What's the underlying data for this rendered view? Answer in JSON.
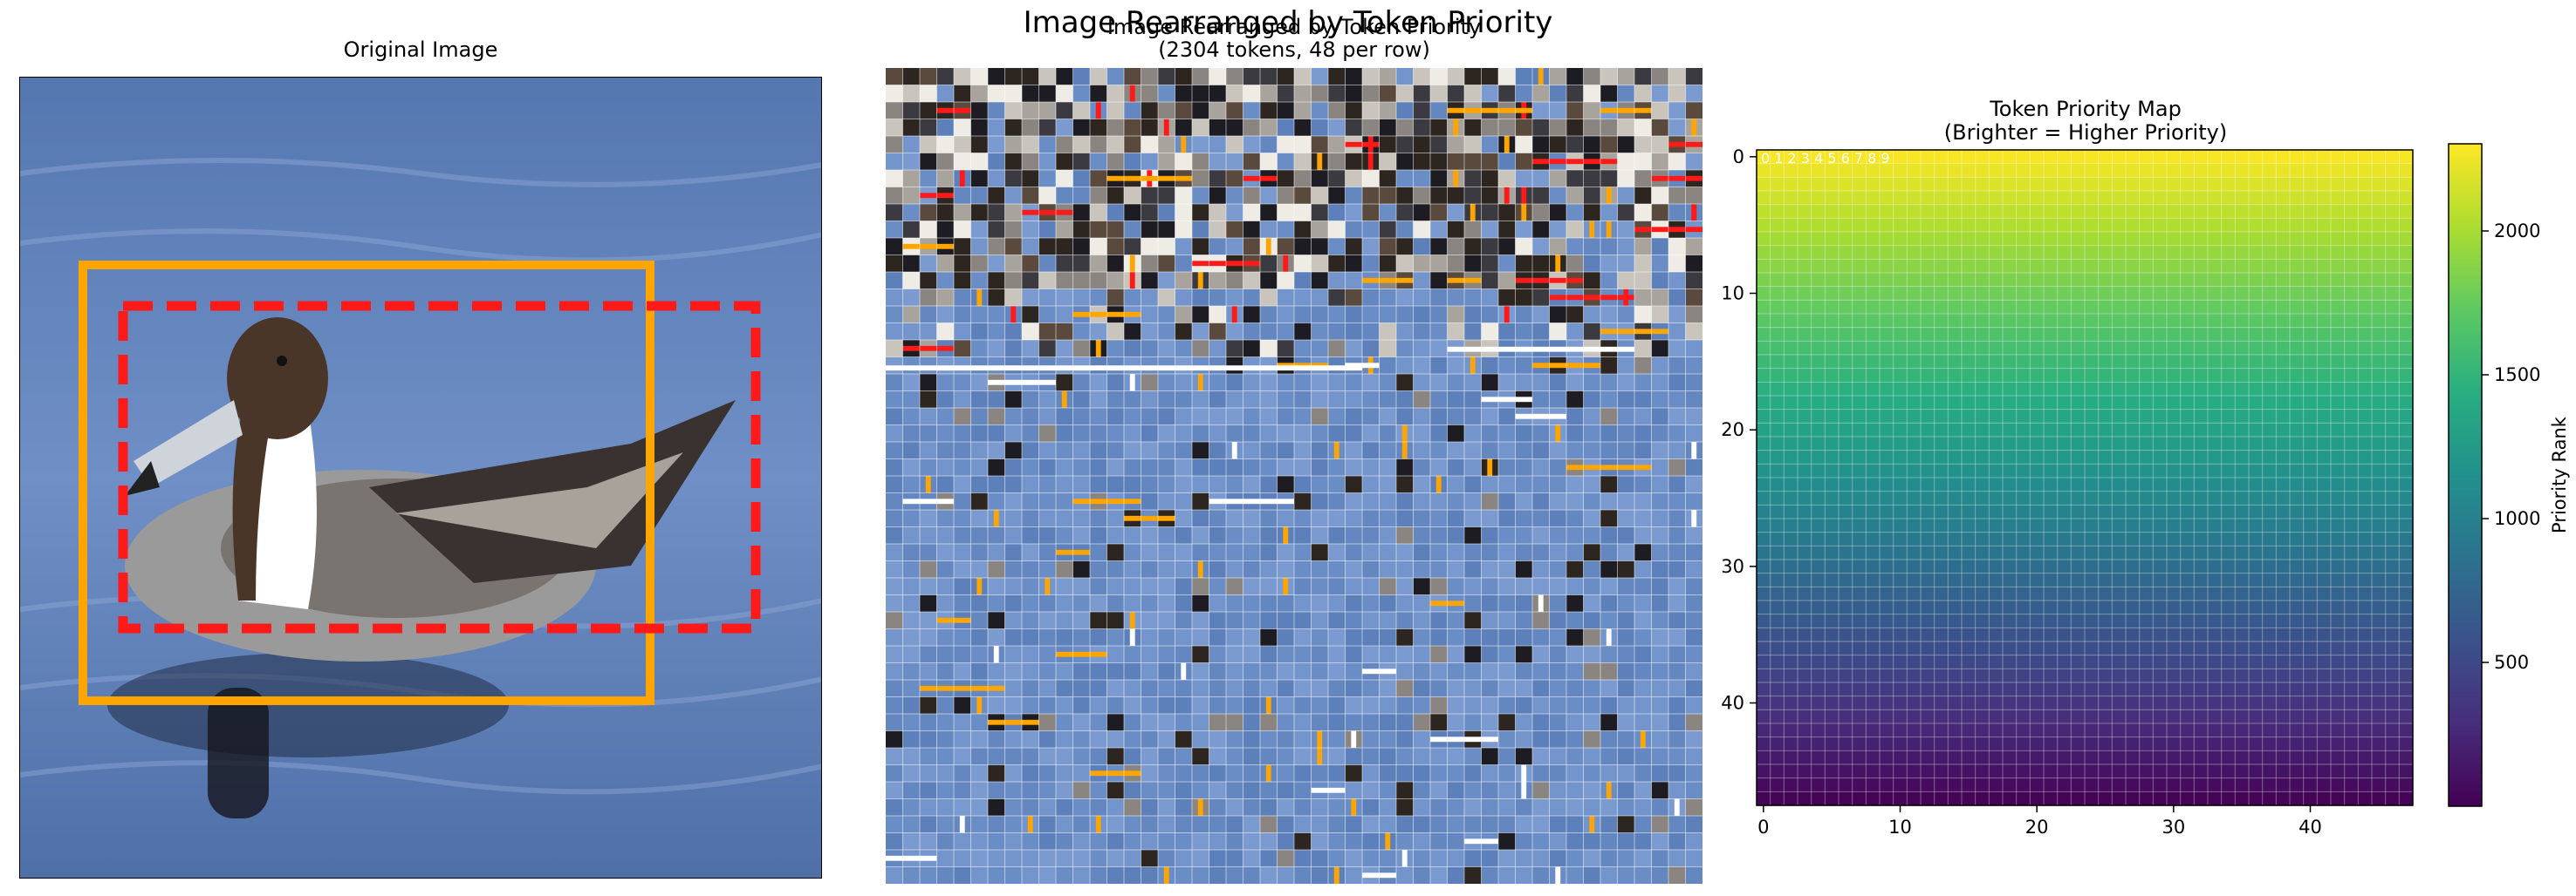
{
  "figure": {
    "title": "Image Rearranged by Token Priority"
  },
  "panels": {
    "original": {
      "title": "Original Image"
    },
    "rearranged": {
      "title": "Image Rearranged by Token Priority",
      "subtitle": "(2304 tokens, 48 per row)"
    },
    "priority_map": {
      "title": "Token Priority Map",
      "subtitle": "(Brighter = Higher Priority)",
      "row_index_overlay": "0 1 2 3 4 5 6 7 8 9",
      "colorbar_label": "Priority Rank"
    }
  },
  "chart_data": [
    {
      "type": "image",
      "title": "Original Image",
      "annotations": [
        {
          "kind": "bounding-box",
          "style": "solid",
          "color": "#ffa500"
        },
        {
          "kind": "bounding-box",
          "style": "dashed",
          "color": "#ff1a1a"
        }
      ]
    },
    {
      "type": "image",
      "title": "Image Rearranged by Token Priority",
      "subtitle": "(2304 tokens, 48 per row)",
      "tokens": 2304,
      "tokens_per_row": 48,
      "highlight_colors": [
        "#ffa500",
        "#ff1a1a",
        "#ffffff"
      ]
    },
    {
      "type": "heatmap",
      "title": "Token Priority Map",
      "subtitle": "(Brighter = Higher Priority)",
      "grid": [
        48,
        48
      ],
      "colormap": "viridis",
      "value_range": [
        0,
        2303
      ],
      "gradient": "rank increases from bottom row (low) to top row (high)",
      "x_ticks": [
        0,
        10,
        20,
        30,
        40
      ],
      "y_ticks": [
        0,
        10,
        20,
        30,
        40
      ],
      "colorbar": {
        "label": "Priority Rank",
        "ticks": [
          500,
          1000,
          1500,
          2000
        ]
      },
      "grid_lines": true
    }
  ]
}
